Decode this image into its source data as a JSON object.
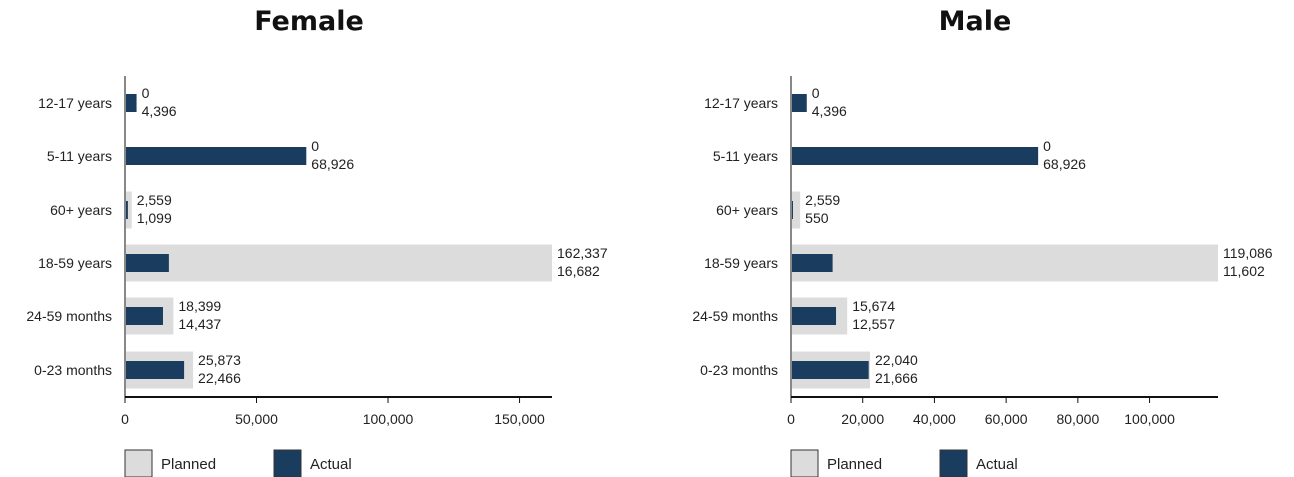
{
  "colors": {
    "planned": "#dcdcdc",
    "actual": "#1a3d5f",
    "axis": "#888888",
    "baseline": "#111111"
  },
  "legend": {
    "planned": "Planned",
    "actual": "Actual"
  },
  "chart_data": [
    {
      "type": "bar",
      "orientation": "horizontal",
      "title": "Female",
      "categories": [
        "12-17 years",
        "5-11 years",
        "60+ years",
        "18-59 years",
        "24-59 months",
        "0-23 months"
      ],
      "series": [
        {
          "name": "Planned",
          "values": [
            0,
            0,
            2559,
            162337,
            18399,
            25873
          ]
        },
        {
          "name": "Actual",
          "values": [
            4396,
            68926,
            1099,
            16682,
            14437,
            22466
          ]
        }
      ],
      "planned_labels": [
        "0",
        "0",
        "2,559",
        "162,337",
        "18,399",
        "25,873"
      ],
      "actual_labels": [
        "4,396",
        "68,926",
        "1,099",
        "16,682",
        "14,437",
        "22,466"
      ],
      "xlim": [
        0,
        162337
      ],
      "ticks": [
        0,
        50000,
        100000,
        150000
      ],
      "tick_labels": [
        "0",
        "50,000",
        "100,000",
        "150,000"
      ],
      "legend_position": "bottom-left"
    },
    {
      "type": "bar",
      "orientation": "horizontal",
      "title": "Male",
      "categories": [
        "12-17 years",
        "5-11 years",
        "60+ years",
        "18-59 years",
        "24-59 months",
        "0-23 months"
      ],
      "series": [
        {
          "name": "Planned",
          "values": [
            0,
            0,
            2559,
            119086,
            15674,
            22040
          ]
        },
        {
          "name": "Actual",
          "values": [
            4396,
            68926,
            550,
            11602,
            12557,
            21666
          ]
        }
      ],
      "planned_labels": [
        "0",
        "0",
        "2,559",
        "119,086",
        "15,674",
        "22,040"
      ],
      "actual_labels": [
        "4,396",
        "68,926",
        "550",
        "11,602",
        "12,557",
        "21,666"
      ],
      "xlim": [
        0,
        119086
      ],
      "ticks": [
        0,
        20000,
        40000,
        60000,
        80000,
        100000
      ],
      "tick_labels": [
        "0",
        "20,000",
        "40,000",
        "60,000",
        "80,000",
        "100,000"
      ],
      "legend_position": "bottom-left"
    }
  ]
}
